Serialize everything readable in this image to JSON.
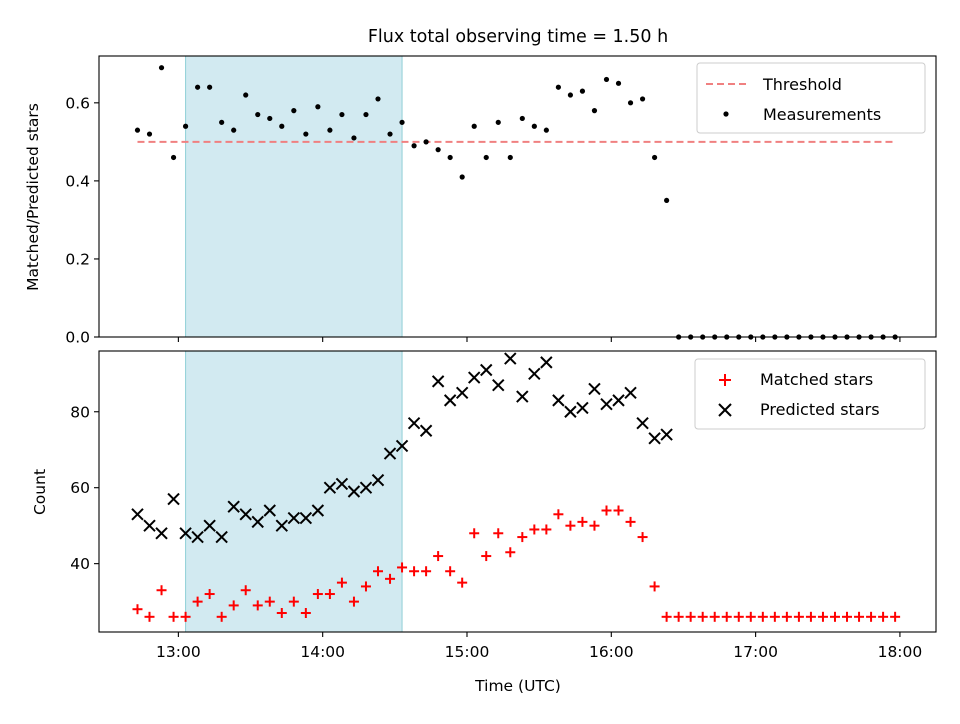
{
  "figure": {
    "title": "Flux total observing time = 1.50 h"
  },
  "colors": {
    "threshold": "#f08080",
    "measurements": "#000000",
    "matched": "#ff0000",
    "predicted": "#000000",
    "shade_fill": "#add8e6",
    "shade_edge": "#8fcfd6"
  },
  "chart_data": [
    {
      "type": "scatter",
      "ylabel": "Matched/Predicted stars",
      "xlabel": "",
      "xlim": [
        "12:27",
        "18:15"
      ],
      "ylim": [
        0,
        0.72
      ],
      "yticks": [
        "0.0",
        "0.2",
        "0.4",
        "0.6"
      ],
      "shaded_interval": [
        "13:03",
        "14:33"
      ],
      "legend": {
        "position": "top-right",
        "threshold_label": "Threshold",
        "measurements_label": "Measurements"
      },
      "threshold": {
        "y": 0.5,
        "x_range": [
          "12:43",
          "17:57"
        ]
      },
      "measurements": {
        "x": [
          "12:43",
          "12:48",
          "12:53",
          "12:58",
          "13:03",
          "13:08",
          "13:13",
          "13:18",
          "13:23",
          "13:28",
          "13:33",
          "13:38",
          "13:43",
          "13:48",
          "13:53",
          "13:58",
          "14:03",
          "14:08",
          "14:13",
          "14:18",
          "14:23",
          "14:28",
          "14:33",
          "14:38",
          "14:43",
          "14:48",
          "14:53",
          "14:58",
          "15:03",
          "15:08",
          "15:13",
          "15:18",
          "15:23",
          "15:28",
          "15:33",
          "15:38",
          "15:43",
          "15:48",
          "15:53",
          "15:58",
          "16:03",
          "16:08",
          "16:13",
          "16:18",
          "16:23",
          "16:28",
          "16:33",
          "16:38",
          "16:43",
          "16:48",
          "16:53",
          "16:58",
          "17:03",
          "17:08",
          "17:13",
          "17:18",
          "17:23",
          "17:28",
          "17:33",
          "17:38",
          "17:43",
          "17:48",
          "17:53",
          "17:58"
        ],
        "y": [
          0.53,
          0.52,
          0.69,
          0.46,
          0.54,
          0.64,
          0.64,
          0.55,
          0.53,
          0.62,
          0.57,
          0.56,
          0.54,
          0.58,
          0.52,
          0.59,
          0.53,
          0.57,
          0.51,
          0.57,
          0.61,
          0.52,
          0.55,
          0.49,
          0.5,
          0.48,
          0.46,
          0.41,
          0.54,
          0.46,
          0.55,
          0.46,
          0.56,
          0.54,
          0.53,
          0.64,
          0.62,
          0.63,
          0.58,
          0.66,
          0.65,
          0.6,
          0.61,
          0.46,
          0.35,
          0.0,
          0.0,
          0.0,
          0.0,
          0.0,
          0.0,
          0.0,
          0.0,
          0.0,
          0.0,
          0.0,
          0.0,
          0.0,
          0.0,
          0.0,
          0.0,
          0.0,
          0.0,
          0.0
        ]
      }
    },
    {
      "type": "scatter",
      "ylabel": "Count",
      "xlabel": "Time (UTC)",
      "xlim": [
        "12:27",
        "18:15"
      ],
      "ylim": [
        22,
        96
      ],
      "yticks": [
        "40",
        "60",
        "80"
      ],
      "xticks": [
        "13:00",
        "14:00",
        "15:00",
        "16:00",
        "17:00",
        "18:00"
      ],
      "shaded_interval": [
        "13:03",
        "14:33"
      ],
      "legend": {
        "position": "top-right",
        "matched_label": "Matched stars",
        "predicted_label": "Predicted stars"
      },
      "matched": {
        "x": [
          "12:43",
          "12:48",
          "12:53",
          "12:58",
          "13:03",
          "13:08",
          "13:13",
          "13:18",
          "13:23",
          "13:28",
          "13:33",
          "13:38",
          "13:43",
          "13:48",
          "13:53",
          "13:58",
          "14:03",
          "14:08",
          "14:13",
          "14:18",
          "14:23",
          "14:28",
          "14:33",
          "14:38",
          "14:43",
          "14:48",
          "14:53",
          "14:58",
          "15:03",
          "15:08",
          "15:13",
          "15:18",
          "15:23",
          "15:28",
          "15:33",
          "15:38",
          "15:43",
          "15:48",
          "15:53",
          "15:58",
          "16:03",
          "16:08",
          "16:13",
          "16:18",
          "16:23",
          "16:28",
          "16:33",
          "16:38",
          "16:43",
          "16:48",
          "16:53",
          "16:58",
          "17:03",
          "17:08",
          "17:13",
          "17:18",
          "17:23",
          "17:28",
          "17:33",
          "17:38",
          "17:43",
          "17:48",
          "17:53",
          "17:58"
        ],
        "y": [
          28,
          26,
          33,
          26,
          26,
          30,
          32,
          26,
          29,
          33,
          29,
          30,
          27,
          30,
          27,
          32,
          32,
          35,
          30,
          34,
          38,
          36,
          39,
          38,
          38,
          42,
          38,
          35,
          48,
          42,
          48,
          43,
          47,
          49,
          49,
          53,
          50,
          51,
          50,
          54,
          54,
          51,
          47,
          34,
          26,
          26,
          26,
          26,
          26,
          26,
          26,
          26,
          26,
          26,
          26,
          26,
          26,
          26,
          26,
          26,
          26,
          26,
          26,
          26
        ]
      },
      "predicted": {
        "x": [
          "12:43",
          "12:48",
          "12:53",
          "12:58",
          "13:03",
          "13:08",
          "13:13",
          "13:18",
          "13:23",
          "13:28",
          "13:33",
          "13:38",
          "13:43",
          "13:48",
          "13:53",
          "13:58",
          "14:03",
          "14:08",
          "14:13",
          "14:18",
          "14:23",
          "14:28",
          "14:33",
          "14:38",
          "14:43",
          "14:48",
          "14:53",
          "14:58",
          "15:03",
          "15:08",
          "15:13",
          "15:18",
          "15:23",
          "15:28",
          "15:33",
          "15:38",
          "15:43",
          "15:48",
          "15:53",
          "15:58",
          "16:03",
          "16:08",
          "16:13",
          "16:18",
          "16:23"
        ],
        "y": [
          53,
          50,
          48,
          57,
          48,
          47,
          50,
          47,
          55,
          53,
          51,
          54,
          50,
          52,
          52,
          54,
          60,
          61,
          59,
          60,
          62,
          69,
          71,
          77,
          75,
          88,
          83,
          85,
          89,
          91,
          87,
          94,
          84,
          90,
          93,
          83,
          80,
          81,
          86,
          82,
          83,
          85,
          77,
          73,
          74
        ]
      }
    }
  ]
}
